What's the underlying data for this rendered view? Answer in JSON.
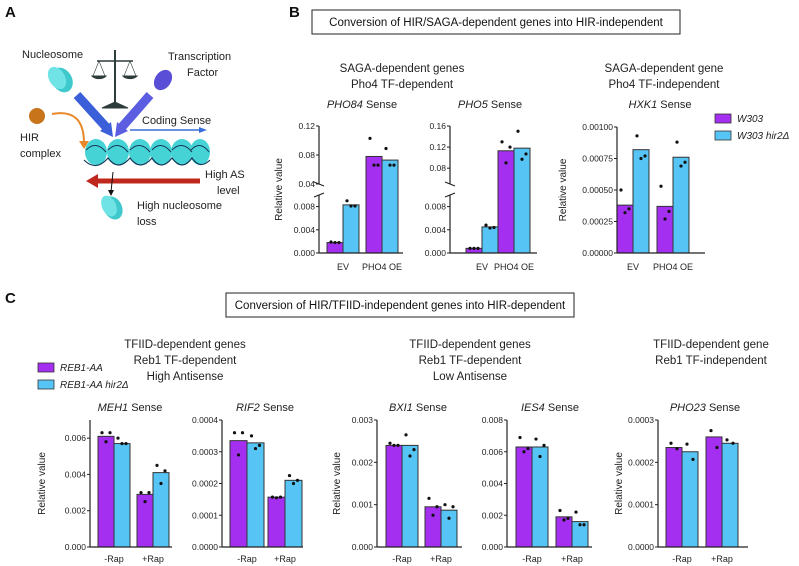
{
  "panel_labels": {
    "a": "A",
    "b": "B",
    "c": "C"
  },
  "diagram": {
    "nucleosome": "Nucleosome",
    "tf_line1": "Transcription",
    "tf_line2": "Factor",
    "hir_line1": "HIR",
    "hir_line2": "complex",
    "coding": "Coding Sense",
    "as_line1": "High AS",
    "as_line2": "level",
    "loss_line1": "High nucleosome",
    "loss_line2": "loss"
  },
  "panel_b": {
    "header": "Conversion of HIR/SAGA-dependent genes into HIR-independent",
    "group_titles": [
      [
        "SAGA-dependent genes",
        "Pho4 TF-dependent"
      ],
      [
        "SAGA-dependent gene",
        "Pho4 TF-independent"
      ]
    ],
    "legend": [
      {
        "label": "W303",
        "color": "#a52ff0"
      },
      {
        "label": "W303 hir2Δ",
        "color": "#56c4f5"
      }
    ]
  },
  "panel_c": {
    "header": "Conversion of HIR/TFIID-independent genes into HIR-dependent",
    "group_titles": [
      [
        "TFIID-dependent genes",
        "Reb1 TF-dependent",
        "High Antisense"
      ],
      [
        "TFIID-dependent genes",
        "Reb1 TF-dependent",
        "Low Antisense"
      ],
      [
        "TFIID-dependent gene",
        "Reb1 TF-independent"
      ]
    ],
    "legend": [
      {
        "label": "REB1-AA",
        "color": "#a52ff0"
      },
      {
        "label": "REB1-AA hir2Δ",
        "color": "#56c4f5"
      }
    ]
  },
  "chart_data": [
    {
      "type": "bar",
      "gene": "PHO84",
      "title_suffix": " Sense",
      "ylabel": "Relative value",
      "categories": [
        "EV",
        "PHO4 OE"
      ],
      "ylim": [
        0,
        0.12
      ],
      "axis_break": [
        0.01,
        0.04
      ],
      "yticks": [
        0,
        0.004,
        0.008,
        0.04,
        0.08,
        0.12
      ],
      "ytick_labels": [
        "0.000",
        "0.004",
        "0.008",
        "0.04",
        "0.08",
        "0.12"
      ],
      "series": [
        {
          "name": "W303",
          "values": [
            0.0018,
            0.078
          ],
          "points": [
            [
              0.0019,
              0.0018,
              0.0018
            ],
            [
              0.103,
              0.066,
              0.066
            ]
          ]
        },
        {
          "name": "W303 hir2Δ",
          "values": [
            0.0083,
            0.073
          ],
          "points": [
            [
              0.009,
              0.0081,
              0.0081
            ],
            [
              0.089,
              0.066,
              0.066
            ]
          ]
        }
      ]
    },
    {
      "type": "bar",
      "gene": "PHO5",
      "title_suffix": " Sense",
      "ylabel": "",
      "categories": [
        "EV",
        "PHO4 OE"
      ],
      "ylim": [
        0,
        0.16
      ],
      "axis_break": [
        0.01,
        0.05
      ],
      "yticks": [
        0,
        0.004,
        0.008,
        0.08,
        0.12,
        0.16
      ],
      "ytick_labels": [
        "0.000",
        "0.004",
        "0.008",
        "0.08",
        "0.12",
        "0.16"
      ],
      "series": [
        {
          "name": "W303",
          "values": [
            0.0008,
            0.113
          ],
          "points": [
            [
              0.0008,
              0.0008,
              0.0008
            ],
            [
              0.13,
              0.12,
              0.09
            ]
          ]
        },
        {
          "name": "W303 hir2Δ",
          "values": [
            0.0045,
            0.118
          ],
          "points": [
            [
              0.0048,
              0.0044,
              0.0043
            ],
            [
              0.15,
              0.107,
              0.097
            ]
          ]
        }
      ]
    },
    {
      "type": "bar",
      "gene": "HXK1",
      "title_suffix": " Sense",
      "ylabel": "Relative value",
      "categories": [
        "EV",
        "PHO4 OE"
      ],
      "ylim": [
        0,
        0.001
      ],
      "yticks": [
        0,
        0.00025,
        0.0005,
        0.00075,
        0.001
      ],
      "ytick_labels": [
        "0.00000",
        "0.00025",
        "0.00050",
        "0.00075",
        "0.00100"
      ],
      "series": [
        {
          "name": "W303",
          "values": [
            0.00038,
            0.00037
          ],
          "points": [
            [
              0.0005,
              0.00035,
              0.00032
            ],
            [
              0.00053,
              0.00033,
              0.00027
            ]
          ]
        },
        {
          "name": "W303 hir2Δ",
          "values": [
            0.00082,
            0.00076
          ],
          "points": [
            [
              0.00093,
              0.00077,
              0.00075
            ],
            [
              0.00088,
              0.00072,
              0.00069
            ]
          ]
        }
      ]
    },
    {
      "type": "bar",
      "gene": "MEH1",
      "title_suffix": " Sense",
      "ylabel": "Relative value",
      "categories": [
        "-Rap",
        "+Rap"
      ],
      "ylim": [
        0,
        0.007
      ],
      "yticks": [
        0,
        0.002,
        0.004,
        0.006
      ],
      "ytick_labels": [
        "0.000",
        "0.002",
        "0.004",
        "0.006"
      ],
      "series": [
        {
          "name": "REB1-AA",
          "values": [
            0.0061,
            0.0029
          ],
          "points": [
            [
              0.0063,
              0.0063,
              0.0058
            ],
            [
              0.003,
              0.003,
              0.0025
            ]
          ]
        },
        {
          "name": "REB1-AA hir2Δ",
          "values": [
            0.0057,
            0.0041
          ],
          "points": [
            [
              0.006,
              0.0057,
              0.0057
            ],
            [
              0.0045,
              0.0042,
              0.0035
            ]
          ]
        }
      ]
    },
    {
      "type": "bar",
      "gene": "RIF2",
      "title_suffix": " Sense",
      "ylabel": "",
      "categories": [
        "-Rap",
        "+Rap"
      ],
      "ylim": [
        0,
        0.0004
      ],
      "yticks": [
        0,
        0.0001,
        0.0002,
        0.0003,
        0.0004
      ],
      "ytick_labels": [
        "0.0000",
        "0.0001",
        "0.0002",
        "0.0003",
        "0.0004"
      ],
      "series": [
        {
          "name": "REB1-AA",
          "values": [
            0.000335,
            0.000157
          ],
          "points": [
            [
              0.00036,
              0.00036,
              0.00029
            ],
            [
              0.000157,
              0.000157,
              0.000155
            ]
          ]
        },
        {
          "name": "REB1-AA hir2Δ",
          "values": [
            0.000328,
            0.00021
          ],
          "points": [
            [
              0.00035,
              0.00032,
              0.00031
            ],
            [
              0.000225,
              0.00021,
              0.0002
            ]
          ]
        }
      ]
    },
    {
      "type": "bar",
      "gene": "BXI1",
      "title_suffix": " Sense",
      "ylabel": "Relative value",
      "categories": [
        "-Rap",
        "+Rap"
      ],
      "ylim": [
        0,
        0.003
      ],
      "yticks": [
        0,
        0.001,
        0.002,
        0.003
      ],
      "ytick_labels": [
        "0.000",
        "0.001",
        "0.002",
        "0.003"
      ],
      "series": [
        {
          "name": "REB1-AA",
          "values": [
            0.0024,
            0.00095
          ],
          "points": [
            [
              0.00245,
              0.0024,
              0.0024
            ],
            [
              0.00115,
              0.00095,
              0.00075
            ]
          ]
        },
        {
          "name": "REB1-AA hir2Δ",
          "values": [
            0.0024,
            0.00087
          ],
          "points": [
            [
              0.00265,
              0.0023,
              0.00215
            ],
            [
              0.001,
              0.00095,
              0.00068
            ]
          ]
        }
      ]
    },
    {
      "type": "bar",
      "gene": "IES4",
      "title_suffix": " Sense",
      "ylabel": "",
      "categories": [
        "-Rap",
        "+Rap"
      ],
      "ylim": [
        0,
        0.008
      ],
      "yticks": [
        0,
        0.002,
        0.004,
        0.006,
        0.008
      ],
      "ytick_labels": [
        "0.000",
        "0.002",
        "0.004",
        "0.006",
        "0.008"
      ],
      "series": [
        {
          "name": "REB1-AA",
          "values": [
            0.0063,
            0.0019
          ],
          "points": [
            [
              0.0069,
              0.0062,
              0.006
            ],
            [
              0.0023,
              0.0018,
              0.0017
            ]
          ]
        },
        {
          "name": "REB1-AA hir2Δ",
          "values": [
            0.0063,
            0.0016
          ],
          "points": [
            [
              0.0068,
              0.0064,
              0.0057
            ],
            [
              0.0022,
              0.0014,
              0.0014
            ]
          ]
        }
      ]
    },
    {
      "type": "bar",
      "gene": "PHO23",
      "title_suffix": " Sense",
      "ylabel": "Relative value",
      "categories": [
        "-Rap",
        "+Rap"
      ],
      "ylim": [
        0,
        0.0003
      ],
      "yticks": [
        0,
        0.0001,
        0.0002,
        0.0003
      ],
      "ytick_labels": [
        "0.0000",
        "0.0001",
        "0.0002",
        "0.0003"
      ],
      "series": [
        {
          "name": "REB1-AA",
          "values": [
            0.000235,
            0.00026
          ],
          "points": [
            [
              0.000245,
              0.000232
            ],
            [
              0.000275,
              0.000235
            ]
          ]
        },
        {
          "name": "REB1-AA hir2Δ",
          "values": [
            0.000225,
            0.000245
          ],
          "points": [
            [
              0.000243,
              0.000207
            ],
            [
              0.000253,
              0.000245
            ]
          ]
        }
      ]
    }
  ]
}
